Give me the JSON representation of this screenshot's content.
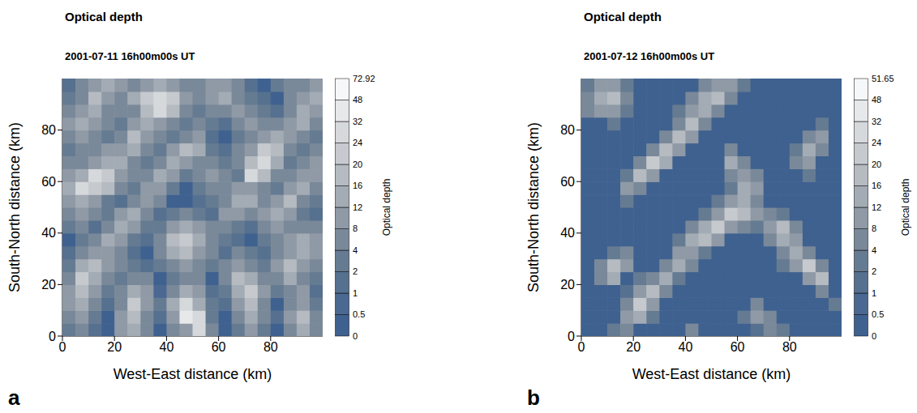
{
  "chart_data": [
    {
      "type": "heatmap",
      "label": "a",
      "title": "Optical depth",
      "subtitle": "2001-07-11 16h00m00s UT",
      "x_label": "West-East distance (km)",
      "y_label": "South-North distance (km)",
      "xlim": [
        0,
        100
      ],
      "ylim": [
        0,
        100
      ],
      "xticks": [
        0,
        20,
        40,
        60,
        80
      ],
      "yticks": [
        0,
        20,
        40,
        60,
        80
      ],
      "x": [
        2.5,
        7.5,
        12.5,
        17.5,
        22.5,
        27.5,
        32.5,
        37.5,
        42.5,
        47.5,
        52.5,
        57.5,
        62.5,
        67.5,
        72.5,
        77.5,
        82.5,
        87.5,
        92.5,
        97.5
      ],
      "y": [
        2.5,
        7.5,
        12.5,
        17.5,
        22.5,
        27.5,
        32.5,
        37.5,
        42.5,
        47.5,
        52.5,
        57.5,
        62.5,
        67.5,
        72.5,
        77.5,
        82.5,
        87.5,
        92.5,
        97.5
      ],
      "cells": [
        [
          3,
          6,
          1,
          0.2,
          8,
          12,
          4,
          0.3,
          6,
          10,
          24,
          5,
          0.2,
          3,
          9,
          2,
          0.3,
          6,
          14,
          4
        ],
        [
          5,
          9,
          2,
          0.3,
          10,
          16,
          6,
          1,
          8,
          40,
          30,
          3,
          0.4,
          6,
          12,
          4,
          1,
          8,
          18,
          6
        ],
        [
          8,
          12,
          4,
          1,
          6,
          20,
          10,
          2,
          12,
          28,
          14,
          2,
          1,
          10,
          16,
          6,
          0.4,
          4,
          10,
          3
        ],
        [
          10,
          16,
          8,
          3,
          4,
          12,
          8,
          0.5,
          6,
          12,
          8,
          1,
          3,
          14,
          20,
          8,
          2,
          6,
          8,
          1
        ],
        [
          6,
          20,
          14,
          6,
          2,
          6,
          4,
          0.3,
          2,
          6,
          4,
          0.4,
          6,
          18,
          12,
          4,
          6,
          12,
          6,
          2
        ],
        [
          3,
          12,
          18,
          10,
          4,
          2,
          1,
          2,
          6,
          10,
          6,
          2,
          4,
          10,
          6,
          2,
          8,
          16,
          10,
          4
        ],
        [
          1,
          6,
          10,
          8,
          6,
          1,
          0.3,
          4,
          12,
          16,
          10,
          4,
          1,
          4,
          2,
          1,
          4,
          10,
          14,
          8
        ],
        [
          0.3,
          2,
          4,
          12,
          10,
          3,
          1,
          6,
          16,
          20,
          12,
          6,
          2,
          1,
          0.3,
          2,
          6,
          8,
          12,
          10
        ],
        [
          2,
          4,
          1,
          6,
          14,
          8,
          3,
          2,
          8,
          12,
          8,
          4,
          6,
          2,
          1,
          4,
          10,
          6,
          4,
          6
        ],
        [
          6,
          10,
          4,
          2,
          8,
          12,
          6,
          1,
          2,
          4,
          2,
          1,
          8,
          10,
          6,
          8,
          14,
          10,
          2,
          1
        ],
        [
          10,
          14,
          8,
          2,
          1,
          6,
          10,
          4,
          0.3,
          0.2,
          1,
          3,
          6,
          14,
          12,
          6,
          8,
          16,
          6,
          2
        ],
        [
          14,
          24,
          20,
          16,
          6,
          2,
          8,
          10,
          2,
          0.3,
          2,
          6,
          4,
          8,
          10,
          4,
          2,
          10,
          12,
          6
        ],
        [
          8,
          12,
          28,
          22,
          10,
          4,
          4,
          12,
          8,
          2,
          4,
          10,
          6,
          2,
          24,
          18,
          6,
          4,
          8,
          10
        ],
        [
          4,
          6,
          10,
          14,
          12,
          6,
          2,
          6,
          14,
          10,
          6,
          4,
          2,
          6,
          18,
          30,
          12,
          2,
          4,
          8
        ],
        [
          2,
          4,
          6,
          10,
          8,
          12,
          6,
          2,
          8,
          16,
          12,
          2,
          1,
          4,
          10,
          20,
          16,
          6,
          2,
          4
        ],
        [
          6,
          10,
          4,
          2,
          6,
          16,
          10,
          4,
          2,
          6,
          8,
          1,
          0.3,
          2,
          6,
          10,
          12,
          8,
          4,
          2
        ],
        [
          10,
          14,
          8,
          4,
          2,
          8,
          12,
          10,
          4,
          2,
          4,
          2,
          1,
          4,
          8,
          6,
          4,
          10,
          14,
          6
        ],
        [
          4,
          8,
          12,
          6,
          4,
          6,
          18,
          28,
          16,
          6,
          2,
          4,
          6,
          10,
          4,
          2,
          1,
          6,
          12,
          10
        ],
        [
          2,
          6,
          16,
          10,
          6,
          12,
          20,
          30,
          22,
          8,
          4,
          8,
          12,
          6,
          2,
          1,
          0.3,
          4,
          8,
          12
        ],
        [
          1,
          4,
          10,
          14,
          8,
          6,
          10,
          12,
          8,
          4,
          6,
          10,
          8,
          4,
          1,
          0.3,
          2,
          6,
          4,
          8
        ]
      ],
      "colorbar": {
        "label": "Optical depth",
        "ticks": [
          0,
          0.5,
          1,
          2,
          4,
          8,
          12,
          16,
          20,
          24,
          32,
          48,
          72.92
        ],
        "colors": [
          "#3f6190",
          "#4a6891",
          "#56708f",
          "#657b92",
          "#7a8999",
          "#8f9aa6",
          "#a3abb4",
          "#b5bbc1",
          "#c6cacf",
          "#d6d9dc",
          "#e6e8ea",
          "#f6f7f8"
        ]
      }
    },
    {
      "type": "heatmap",
      "label": "b",
      "title": "Optical depth",
      "subtitle": "2001-07-12 16h00m00s UT",
      "x_label": "West-East distance (km)",
      "y_label": "South-North distance (km)",
      "xlim": [
        0,
        100
      ],
      "ylim": [
        0,
        100
      ],
      "xticks": [
        0,
        20,
        40,
        60,
        80
      ],
      "yticks": [
        0,
        20,
        40,
        60,
        80
      ],
      "x": [
        2.5,
        7.5,
        12.5,
        17.5,
        22.5,
        27.5,
        32.5,
        37.5,
        42.5,
        47.5,
        52.5,
        57.5,
        62.5,
        67.5,
        72.5,
        77.5,
        82.5,
        87.5,
        92.5,
        97.5
      ],
      "y": [
        2.5,
        7.5,
        12.5,
        17.5,
        22.5,
        27.5,
        32.5,
        37.5,
        42.5,
        47.5,
        52.5,
        57.5,
        62.5,
        67.5,
        72.5,
        77.5,
        82.5,
        87.5,
        92.5,
        97.5
      ],
      "cells": [
        [
          0,
          0,
          2,
          6,
          0,
          0,
          0,
          0.3,
          4,
          0,
          0,
          0,
          0,
          1,
          6,
          2,
          0,
          0,
          0,
          0
        ],
        [
          0,
          0,
          0,
          8,
          12,
          2,
          0,
          0,
          0,
          0,
          0,
          0,
          2,
          10,
          4,
          0,
          0,
          0,
          0,
          0
        ],
        [
          0,
          0,
          0,
          4,
          20,
          8,
          0,
          0,
          0,
          0,
          0,
          0,
          0,
          4,
          0,
          0,
          0,
          0,
          0,
          2
        ],
        [
          0,
          0,
          0,
          1,
          10,
          16,
          4,
          0,
          0,
          0,
          0,
          0,
          0,
          0,
          0,
          0,
          0,
          0,
          4,
          0
        ],
        [
          0,
          6,
          12,
          0,
          2,
          6,
          12,
          2,
          0,
          0,
          0,
          0,
          0,
          0,
          0,
          0,
          0,
          10,
          16,
          0
        ],
        [
          0,
          4,
          18,
          8,
          0,
          0,
          6,
          14,
          4,
          0,
          0,
          0,
          0,
          0,
          0,
          2,
          8,
          20,
          6,
          0
        ],
        [
          0,
          0,
          2,
          4,
          0,
          0,
          0,
          8,
          10,
          2,
          0,
          0,
          0,
          0,
          0,
          6,
          14,
          4,
          0,
          0
        ],
        [
          0,
          0,
          0,
          0,
          0,
          0,
          0,
          2,
          12,
          18,
          8,
          0,
          0,
          0,
          4,
          12,
          8,
          0,
          0,
          0
        ],
        [
          0,
          0,
          0,
          0,
          0,
          0,
          0,
          0,
          4,
          14,
          22,
          10,
          6,
          2,
          10,
          18,
          4,
          0,
          0,
          0
        ],
        [
          0,
          0,
          0,
          0,
          0,
          0,
          0,
          0,
          0,
          2,
          8,
          20,
          16,
          8,
          4,
          2,
          0,
          0,
          0,
          0
        ],
        [
          0,
          0,
          0,
          2,
          0,
          0,
          0,
          0,
          0,
          0,
          2,
          8,
          12,
          6,
          0,
          0,
          0,
          0,
          0,
          0
        ],
        [
          0,
          0,
          0,
          8,
          6,
          0,
          0,
          0,
          0,
          0,
          0,
          2,
          14,
          10,
          0,
          0,
          0,
          0,
          0,
          0
        ],
        [
          0,
          0,
          0,
          2,
          16,
          10,
          0,
          0,
          0,
          0,
          0,
          6,
          10,
          4,
          0,
          0,
          0,
          2,
          0,
          0
        ],
        [
          0,
          0,
          0,
          0,
          6,
          20,
          12,
          0,
          0,
          0,
          0,
          12,
          4,
          0,
          0,
          0,
          6,
          10,
          0,
          0
        ],
        [
          0,
          0,
          0,
          0,
          0,
          4,
          16,
          8,
          0,
          0,
          0,
          4,
          0,
          0,
          0,
          0,
          2,
          14,
          6,
          0
        ],
        [
          0,
          0,
          0,
          0,
          0,
          0,
          4,
          18,
          8,
          0,
          0,
          0,
          0,
          0,
          0,
          0,
          0,
          4,
          10,
          0
        ],
        [
          0,
          0,
          2,
          0,
          0,
          0,
          0,
          6,
          16,
          6,
          0,
          0,
          0,
          0,
          0,
          0,
          0,
          0,
          2,
          0
        ],
        [
          4,
          10,
          8,
          2,
          0,
          0,
          0,
          2,
          10,
          14,
          4,
          0,
          0,
          0,
          0,
          0,
          0,
          0,
          0,
          0
        ],
        [
          6,
          14,
          18,
          6,
          0,
          0,
          0,
          0,
          4,
          12,
          16,
          6,
          0,
          0,
          0,
          0,
          0,
          0,
          0,
          0
        ],
        [
          2,
          8,
          10,
          2,
          0,
          0,
          0,
          0,
          0,
          4,
          8,
          10,
          2,
          0,
          0,
          0,
          0,
          0,
          0,
          0
        ]
      ],
      "colorbar": {
        "label": "Optical depth",
        "ticks": [
          0,
          0.5,
          1,
          2,
          4,
          8,
          12,
          16,
          20,
          24,
          32,
          48,
          51.65
        ],
        "colors": [
          "#3f6190",
          "#4a6891",
          "#56708f",
          "#657b92",
          "#7a8999",
          "#8f9aa6",
          "#a3abb4",
          "#b5bbc1",
          "#c6cacf",
          "#d6d9dc",
          "#e6e8ea",
          "#f6f7f8"
        ]
      }
    }
  ]
}
